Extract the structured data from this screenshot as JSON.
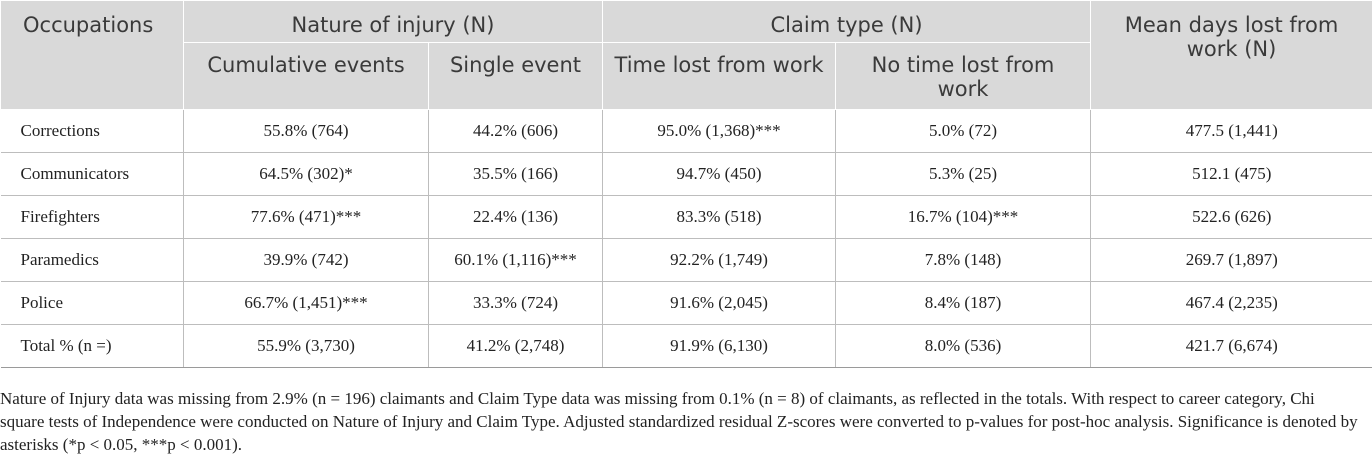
{
  "header": {
    "occupations": "Occupations",
    "nature_of_injury": "Nature of injury (N)",
    "claim_type": "Claim type (N)",
    "mean_days": "Mean days lost from work (N)",
    "sub": [
      "Cumulative events",
      "Single event",
      "Time lost from work",
      "No time lost from work"
    ]
  },
  "rows": [
    {
      "occupation": "Corrections",
      "cells": [
        "55.8% (764)",
        "44.2% (606)",
        "95.0% (1,368)***",
        "5.0% (72)",
        "477.5 (1,441)"
      ]
    },
    {
      "occupation": "Communicators",
      "cells": [
        "64.5% (302)*",
        "35.5% (166)",
        "94.7% (450)",
        "5.3% (25)",
        "512.1 (475)"
      ]
    },
    {
      "occupation": "Firefighters",
      "cells": [
        "77.6% (471)***",
        "22.4% (136)",
        "83.3% (518)",
        "16.7% (104)***",
        "522.6 (626)"
      ]
    },
    {
      "occupation": "Paramedics",
      "cells": [
        "39.9% (742)",
        "60.1% (1,116)***",
        "92.2% (1,749)",
        "7.8% (148)",
        "269.7 (1,897)"
      ]
    },
    {
      "occupation": "Police",
      "cells": [
        "66.7% (1,451)***",
        "33.3% (724)",
        "91.6% (2,045)",
        "8.4% (187)",
        "467.4 (2,235)"
      ]
    },
    {
      "occupation": "Total % (n =)",
      "cells": [
        "55.9% (3,730)",
        "41.2% (2,748)",
        "91.9% (6,130)",
        "8.0% (536)",
        "421.7 (6,674)"
      ]
    }
  ],
  "footnote": "Nature of Injury data was missing from 2.9% (n = 196) claimants and Claim Type data was missing from 0.1% (n = 8) of claimants, as reflected in the totals. With respect to career category, Chi square tests of Independence were conducted on Nature of Injury and Claim Type. Adjusted standardized residual Z-scores were converted to p-values for post-hoc analysis. Significance is denoted by asterisks (*p < 0.05, ***p < 0.001)."
}
